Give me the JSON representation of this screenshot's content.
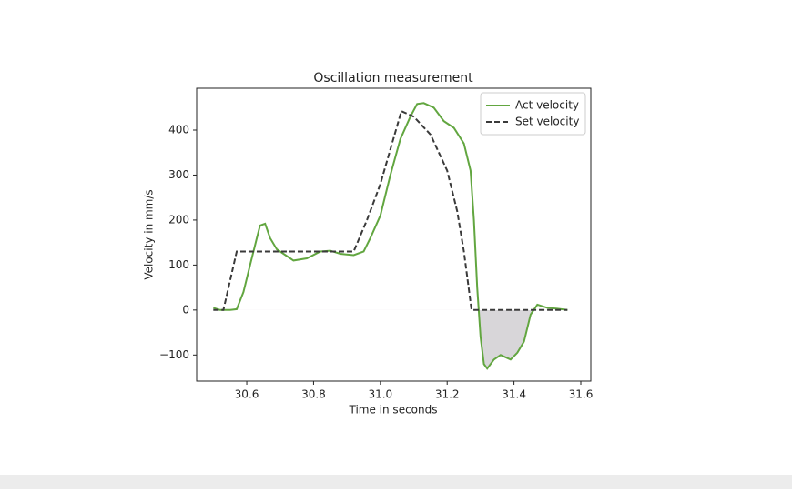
{
  "chart_data": {
    "type": "line",
    "title": "Oscillation measurement",
    "xlabel": "Time in seconds",
    "ylabel": "Velocity in mm/s",
    "xlim": [
      30.45,
      31.63
    ],
    "ylim": [
      -158,
      493
    ],
    "xticks": [
      30.6,
      30.8,
      {
        "value": 31,
        "label": "31.0"
      },
      31.2,
      31.4,
      31.6
    ],
    "yticks": [
      {
        "value": -100,
        "label": "−100"
      },
      0,
      100,
      200,
      300,
      400
    ],
    "legend": "upper right",
    "series": [
      {
        "name": "Act velocity",
        "color": "#62a640",
        "dashed": false,
        "fill_below_zero": "#d8d6d9",
        "x": [
          30.5,
          30.52,
          30.55,
          30.57,
          30.59,
          30.61,
          30.63,
          30.64,
          30.655,
          30.67,
          30.69,
          30.72,
          30.74,
          30.78,
          30.82,
          30.85,
          30.88,
          30.92,
          30.95,
          30.97,
          31.0,
          31.03,
          31.06,
          31.09,
          31.11,
          31.13,
          31.16,
          31.19,
          31.22,
          31.25,
          31.27,
          31.28,
          31.29,
          31.3,
          31.31,
          31.32,
          31.34,
          31.36,
          31.39,
          31.41,
          31.43,
          31.45,
          31.47,
          31.5,
          31.53,
          31.56
        ],
        "values": [
          5,
          0,
          0,
          2,
          40,
          100,
          160,
          188,
          192,
          160,
          135,
          120,
          110,
          115,
          130,
          132,
          125,
          122,
          130,
          160,
          210,
          300,
          380,
          430,
          458,
          460,
          450,
          420,
          405,
          370,
          310,
          200,
          50,
          -60,
          -120,
          -130,
          -110,
          -100,
          -110,
          -95,
          -70,
          -10,
          12,
          5,
          3,
          0
        ]
      },
      {
        "name": "Set velocity",
        "color": "#3a3a3a",
        "dashed": true,
        "x": [
          30.5,
          30.53,
          30.57,
          30.92,
          30.96,
          31.0,
          31.063,
          31.1,
          31.15,
          31.2,
          31.23,
          31.25,
          31.273,
          31.56
        ],
        "values": [
          0,
          0,
          130,
          130,
          200,
          280,
          442,
          430,
          390,
          310,
          220,
          130,
          0,
          0
        ]
      }
    ]
  }
}
